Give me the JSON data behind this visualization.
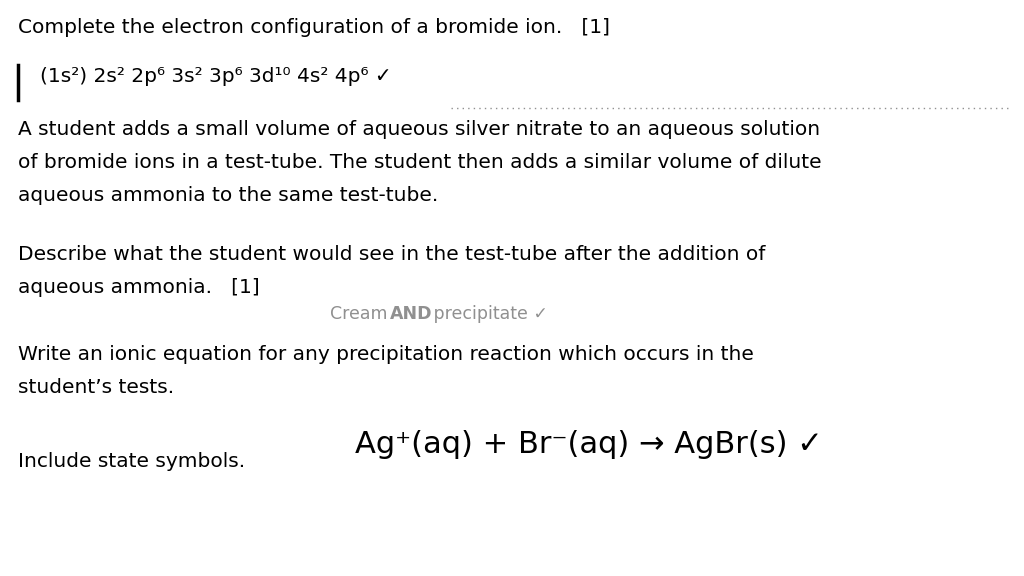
{
  "bg_color": "#ffffff",
  "title_line": "Complete the electron configuration of a bromide ion.   [1]",
  "config_answer": "(1s²) 2s² 2p⁶ 3s² 3p⁶ 3d¹⁰ 4s² 4p⁶ ✓",
  "p1_line1": "A student adds a small volume of aqueous silver nitrate to an aqueous solution",
  "p1_line2": "of bromide ions in a test-tube. The student then adds a similar volume of dilute",
  "p1_line3": "aqueous ammonia to the same test-tube.",
  "q2_line1": "Describe what the student would see in the test-tube after the addition of",
  "q2_line2": "aqueous ammonia.   [1]",
  "cream_1": "Cream ",
  "cream_2": "AND",
  "cream_3": " precipitate ✓",
  "q3_line1": "Write an ionic equation for any precipitation reaction which occurs in the",
  "q3_line2": "student’s tests.",
  "include_label": "Include state symbols.",
  "eq_text": "Ag⁺(aq) + Br⁻(aq) → AgBr(s) ✓",
  "text_color": "#000000",
  "gray_color": "#909090",
  "font_size_main": 14.5,
  "font_size_cream": 12.5,
  "font_size_eq": 22
}
